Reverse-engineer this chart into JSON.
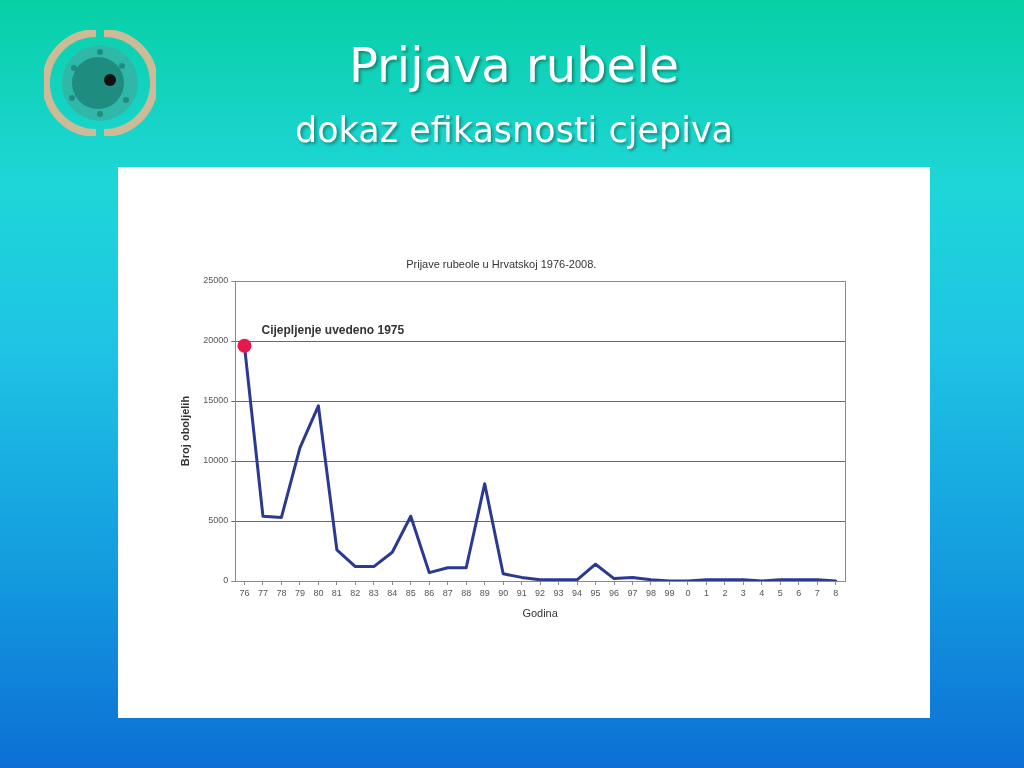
{
  "chart_data": {
    "type": "line",
    "title": "Prijava rubele",
    "subtitle": "dokaz efikasnosti cjepiva",
    "xlabel": "Godina",
    "ylabel": "Broj oboljelih",
    "categories": [
      "76",
      "77",
      "78",
      "79",
      "80",
      "81",
      "82",
      "83",
      "84",
      "85",
      "86",
      "87",
      "88",
      "89",
      "90",
      "91",
      "92",
      "93",
      "94",
      "95",
      "96",
      "97",
      "98",
      "99",
      "0",
      "1",
      "2",
      "3",
      "4",
      "5",
      "6",
      "7",
      "8"
    ],
    "series": [
      {
        "color": "#2b3990",
        "marker": "none",
        "values": [
          19600,
          5400,
          5300,
          11100,
          14600,
          2600,
          1200,
          1200,
          2400,
          5400,
          700,
          1100,
          1100,
          8100,
          600,
          300,
          100,
          100,
          100,
          1400,
          200,
          300,
          100,
          0,
          0,
          100,
          100,
          100,
          0,
          100,
          100,
          100,
          0
        ]
      },
      {
        "type": "scatter",
        "color": "#e5194b",
        "marker": "circle",
        "x": [
          "76"
        ],
        "values": [
          19600
        ]
      }
    ],
    "ylim": [
      0,
      25000
    ],
    "yticks": [
      0,
      5000,
      10000,
      15000,
      20000,
      25000
    ],
    "grid": "y",
    "annotations": [
      "Prijave rubeole u Hrvatskoj 1976-2008.",
      {
        "text": "Cijepljenje uvedeno 1975",
        "x": "76",
        "y": 19600
      }
    ]
  }
}
